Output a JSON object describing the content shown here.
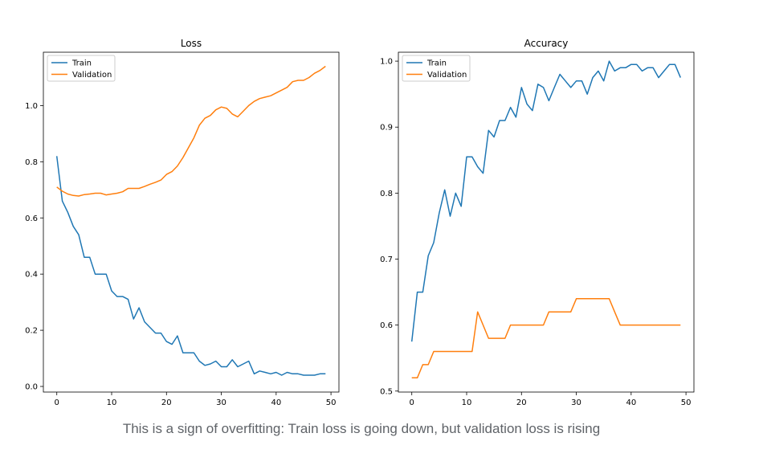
{
  "caption": "This is a sign of overfitting: Train loss is going down, but validation loss is rising",
  "colors": {
    "train": "#1f77b4",
    "validation": "#ff7f0e"
  },
  "chart_data": [
    {
      "type": "line",
      "title": "Loss",
      "xlabel": "",
      "ylabel": "",
      "xlim": [
        -2.45,
        51.45
      ],
      "ylim": [
        -0.02,
        1.19
      ],
      "xticks": [
        0,
        10,
        20,
        30,
        40,
        50
      ],
      "yticks": [
        0.0,
        0.2,
        0.4,
        0.6,
        0.8,
        1.0
      ],
      "ytick_labels": [
        "0.0",
        "0.2",
        "0.4",
        "0.6",
        "0.8",
        "1.0"
      ],
      "legend_position": "top-left",
      "grid": false,
      "x": [
        0,
        1,
        2,
        3,
        4,
        5,
        6,
        7,
        8,
        9,
        10,
        11,
        12,
        13,
        14,
        15,
        16,
        17,
        18,
        19,
        20,
        21,
        22,
        23,
        24,
        25,
        26,
        27,
        28,
        29,
        30,
        31,
        32,
        33,
        34,
        35,
        36,
        37,
        38,
        39,
        40,
        41,
        42,
        43,
        44,
        45,
        46,
        47,
        48,
        49
      ],
      "series": [
        {
          "name": "Train",
          "values": [
            0.82,
            0.66,
            0.62,
            0.57,
            0.54,
            0.46,
            0.46,
            0.4,
            0.4,
            0.4,
            0.34,
            0.32,
            0.32,
            0.31,
            0.24,
            0.28,
            0.23,
            0.21,
            0.19,
            0.19,
            0.16,
            0.15,
            0.18,
            0.12,
            0.12,
            0.12,
            0.09,
            0.075,
            0.08,
            0.09,
            0.07,
            0.07,
            0.095,
            0.07,
            0.08,
            0.09,
            0.045,
            0.055,
            0.05,
            0.045,
            0.05,
            0.04,
            0.05,
            0.045,
            0.045,
            0.04,
            0.04,
            0.04,
            0.045,
            0.045
          ]
        },
        {
          "name": "Validation",
          "values": [
            0.71,
            0.695,
            0.685,
            0.68,
            0.678,
            0.683,
            0.685,
            0.688,
            0.688,
            0.682,
            0.685,
            0.688,
            0.693,
            0.705,
            0.705,
            0.705,
            0.712,
            0.72,
            0.727,
            0.735,
            0.755,
            0.765,
            0.785,
            0.815,
            0.85,
            0.885,
            0.93,
            0.955,
            0.965,
            0.985,
            0.995,
            0.99,
            0.97,
            0.96,
            0.98,
            1.0,
            1.015,
            1.025,
            1.03,
            1.035,
            1.045,
            1.055,
            1.065,
            1.085,
            1.09,
            1.09,
            1.1,
            1.115,
            1.125,
            1.14
          ]
        }
      ]
    },
    {
      "type": "line",
      "title": "Accuracy",
      "xlabel": "",
      "ylabel": "",
      "xlim": [
        -2.45,
        51.45
      ],
      "ylim": [
        0.4985,
        1.0135
      ],
      "xticks": [
        0,
        10,
        20,
        30,
        40,
        50
      ],
      "yticks": [
        0.5,
        0.6,
        0.7,
        0.8,
        0.9,
        1.0
      ],
      "ytick_labels": [
        "0.5",
        "0.6",
        "0.7",
        "0.8",
        "0.9",
        "1.0"
      ],
      "legend_position": "top-left",
      "grid": false,
      "x": [
        0,
        1,
        2,
        3,
        4,
        5,
        6,
        7,
        8,
        9,
        10,
        11,
        12,
        13,
        14,
        15,
        16,
        17,
        18,
        19,
        20,
        21,
        22,
        23,
        24,
        25,
        26,
        27,
        28,
        29,
        30,
        31,
        32,
        33,
        34,
        35,
        36,
        37,
        38,
        39,
        40,
        41,
        42,
        43,
        44,
        45,
        46,
        47,
        48,
        49
      ],
      "series": [
        {
          "name": "Train",
          "values": [
            0.575,
            0.65,
            0.65,
            0.705,
            0.725,
            0.77,
            0.805,
            0.765,
            0.8,
            0.78,
            0.855,
            0.855,
            0.84,
            0.83,
            0.895,
            0.885,
            0.91,
            0.91,
            0.93,
            0.915,
            0.96,
            0.935,
            0.925,
            0.965,
            0.96,
            0.94,
            0.96,
            0.98,
            0.97,
            0.96,
            0.97,
            0.97,
            0.95,
            0.975,
            0.985,
            0.97,
            1.0,
            0.985,
            0.99,
            0.99,
            0.995,
            0.995,
            0.985,
            0.99,
            0.99,
            0.975,
            0.985,
            0.995,
            0.995,
            0.975
          ]
        },
        {
          "name": "Validation",
          "values": [
            0.52,
            0.52,
            0.54,
            0.54,
            0.56,
            0.56,
            0.56,
            0.56,
            0.56,
            0.56,
            0.56,
            0.56,
            0.62,
            0.6,
            0.58,
            0.58,
            0.58,
            0.58,
            0.6,
            0.6,
            0.6,
            0.6,
            0.6,
            0.6,
            0.6,
            0.62,
            0.62,
            0.62,
            0.62,
            0.62,
            0.64,
            0.64,
            0.64,
            0.64,
            0.64,
            0.64,
            0.64,
            0.62,
            0.6,
            0.6,
            0.6,
            0.6,
            0.6,
            0.6,
            0.6,
            0.6,
            0.6,
            0.6,
            0.6,
            0.6
          ]
        }
      ]
    }
  ]
}
